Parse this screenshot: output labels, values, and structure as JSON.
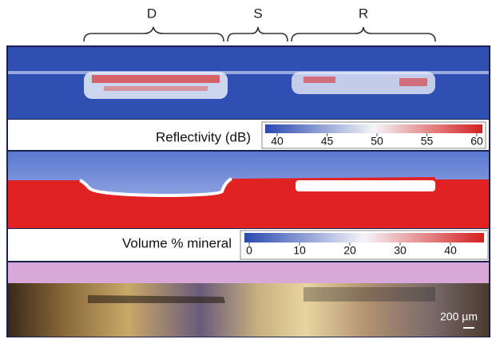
{
  "regions": {
    "labels": [
      "D",
      "S",
      "R"
    ]
  },
  "reflectivity": {
    "title": "Reflectivity (dB)",
    "ticks": [
      40,
      45,
      50,
      55,
      60
    ]
  },
  "mineral": {
    "title": "Volume % mineral",
    "ticks": [
      0,
      10,
      20,
      30,
      40
    ]
  },
  "scale_bar": "200 µm"
}
